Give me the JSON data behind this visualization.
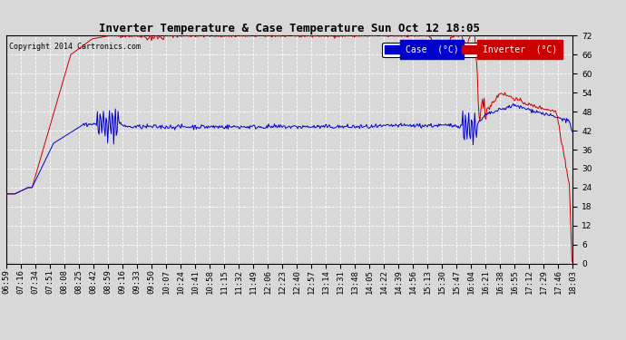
{
  "title": "Inverter Temperature & Case Temperature Sun Oct 12 18:05",
  "copyright": "Copyright 2014 Cartronics.com",
  "ylim": [
    0.0,
    72.0
  ],
  "yticks": [
    0.0,
    6.0,
    12.0,
    18.0,
    24.0,
    30.0,
    36.0,
    42.0,
    48.0,
    54.0,
    60.0,
    66.0,
    72.0
  ],
  "background_color": "#d8d8d8",
  "plot_bg_color": "#d8d8d8",
  "grid_color": "#ffffff",
  "case_color": "#0000cc",
  "inverter_color": "#cc0000",
  "legend_case_label": "Case  (°C)",
  "legend_inverter_label": "Inverter  (°C)",
  "xtick_labels": [
    "06:59",
    "07:16",
    "07:34",
    "07:51",
    "08:08",
    "08:25",
    "08:42",
    "08:59",
    "09:16",
    "09:33",
    "09:50",
    "10:07",
    "10:24",
    "10:41",
    "10:58",
    "11:15",
    "11:32",
    "11:49",
    "12:06",
    "12:23",
    "12:40",
    "12:57",
    "13:14",
    "13:31",
    "13:48",
    "14:05",
    "14:22",
    "14:39",
    "14:56",
    "15:13",
    "15:30",
    "15:47",
    "16:04",
    "16:21",
    "16:38",
    "16:55",
    "17:12",
    "17:29",
    "17:46",
    "18:03"
  ],
  "n_points": 660,
  "title_fontsize": 9,
  "tick_fontsize": 6.5,
  "copyright_fontsize": 6
}
